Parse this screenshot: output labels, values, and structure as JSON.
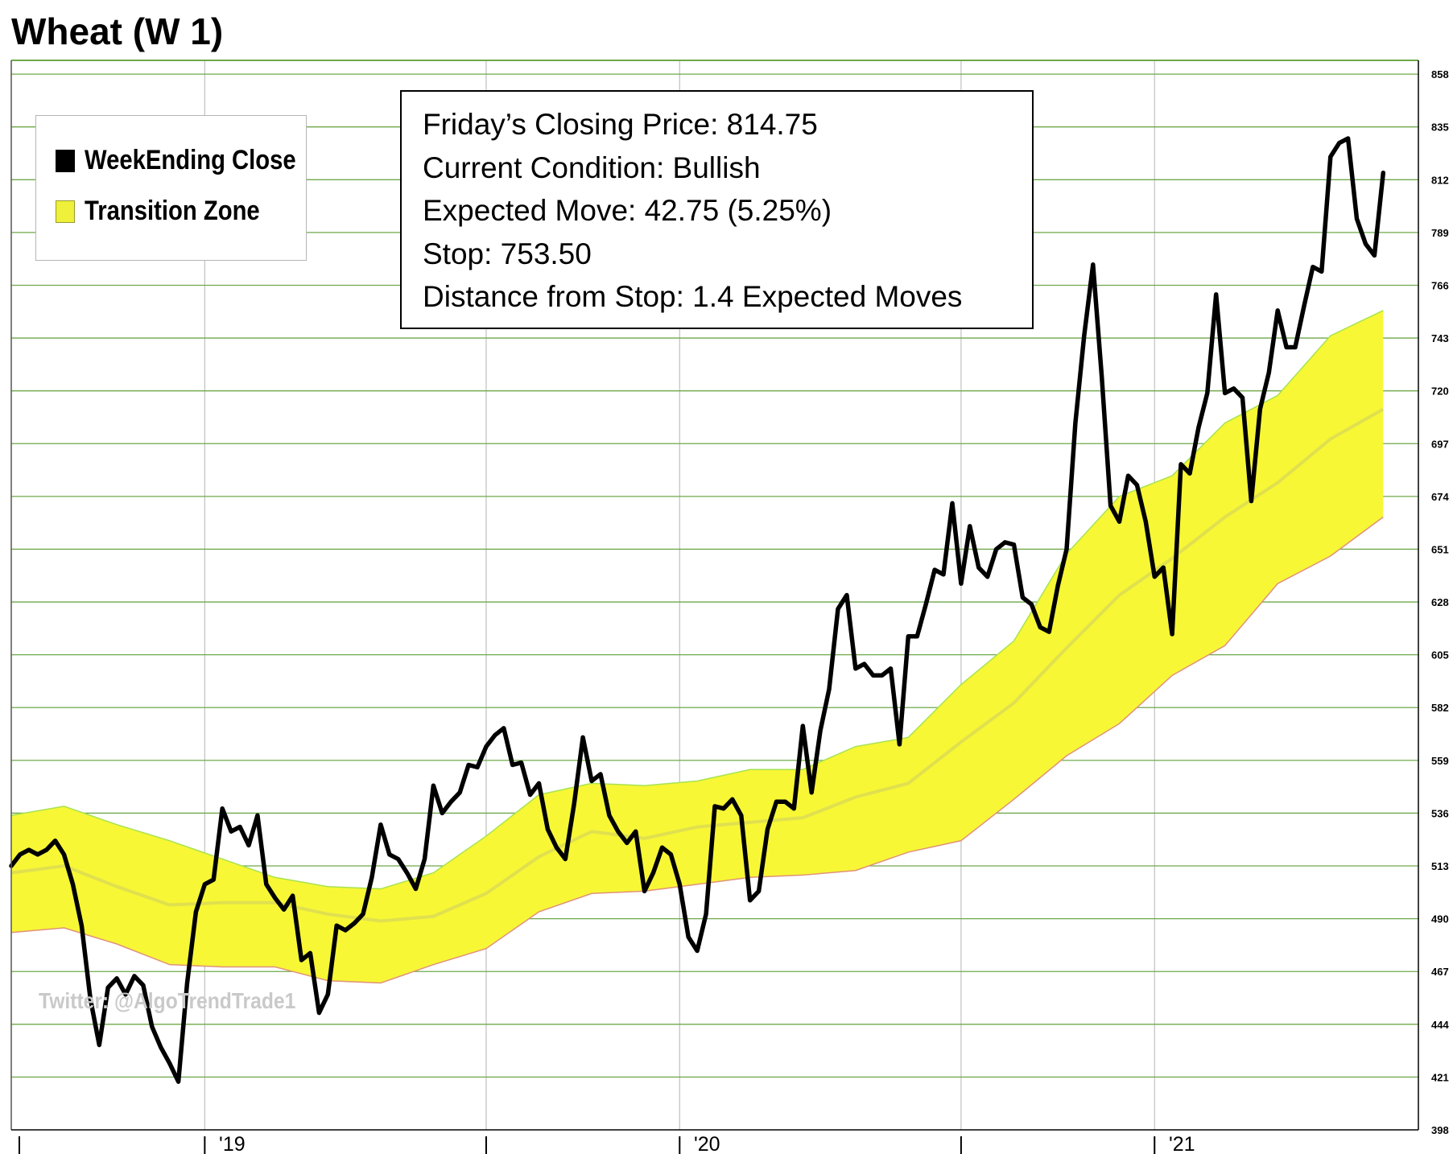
{
  "title": "Wheat (W 1)",
  "legend": {
    "items": [
      {
        "label": "WeekEnding Close",
        "color": "#000000"
      },
      {
        "label": "Transition Zone",
        "color": "#eef03a"
      }
    ]
  },
  "info_box": {
    "closing_price": "Friday’s Closing Price: 814.75",
    "condition": "Current Condition: Bullish",
    "expected_move": "Expected Move: 42.75 (5.25%)",
    "stop": "Stop: 753.50",
    "distance": "Distance from Stop: 1.4 Expected Moves"
  },
  "watermark": "Twitter: @AlgoTrendTrade1",
  "colors": {
    "price_line": "#000000",
    "zone_fill": "#f7f736",
    "zone_upper_edge": "#a8e24f",
    "zone_lower_edge": "#e0927a",
    "zone_mid": "#d6d65a",
    "grid": "#6fa84a",
    "vgrid": "#c0c0c0"
  },
  "chart_data": {
    "type": "line",
    "title": "Wheat (W 1)",
    "xlabel": "",
    "ylabel": "",
    "ylim": [
      398,
      864
    ],
    "y_ticks": [
      398,
      421,
      444,
      467,
      490,
      513,
      536,
      559,
      582,
      605,
      628,
      651,
      674,
      697,
      720,
      743,
      766,
      789,
      812,
      835,
      858
    ],
    "x_tick_labels": [
      "'19",
      "'20",
      "'21"
    ],
    "x_range_weeks": [
      0,
      160
    ],
    "grid": true,
    "legend_position": "top-left",
    "x_ticks": [
      {
        "label": "",
        "week": 0
      },
      {
        "label": "'19",
        "week": 22
      },
      {
        "label": "",
        "week": 54
      },
      {
        "label": "'20",
        "week": 76
      },
      {
        "label": "",
        "week": 108
      },
      {
        "label": "'21",
        "week": 130
      }
    ],
    "series": [
      {
        "name": "WeekEnding Close",
        "style": "line",
        "points": [
          [
            0,
            513
          ],
          [
            1,
            518
          ],
          [
            2,
            520
          ],
          [
            3,
            518
          ],
          [
            4,
            520
          ],
          [
            5,
            524
          ],
          [
            6,
            518
          ],
          [
            7,
            505
          ],
          [
            8,
            487
          ],
          [
            9,
            455
          ],
          [
            10,
            435
          ],
          [
            11,
            460
          ],
          [
            12,
            464
          ],
          [
            13,
            457
          ],
          [
            14,
            465
          ],
          [
            15,
            461
          ],
          [
            16,
            443
          ],
          [
            17,
            434
          ],
          [
            18,
            427
          ],
          [
            19,
            419
          ],
          [
            20,
            462
          ],
          [
            21,
            493
          ],
          [
            22,
            505
          ],
          [
            23,
            507
          ],
          [
            24,
            538
          ],
          [
            25,
            528
          ],
          [
            26,
            530
          ],
          [
            27,
            522
          ],
          [
            28,
            535
          ],
          [
            29,
            505
          ],
          [
            30,
            499
          ],
          [
            31,
            494
          ],
          [
            32,
            500
          ],
          [
            33,
            472
          ],
          [
            34,
            475
          ],
          [
            35,
            449
          ],
          [
            36,
            457
          ],
          [
            37,
            487
          ],
          [
            38,
            485
          ],
          [
            39,
            488
          ],
          [
            40,
            492
          ],
          [
            41,
            508
          ],
          [
            42,
            531
          ],
          [
            43,
            518
          ],
          [
            44,
            516
          ],
          [
            45,
            510
          ],
          [
            46,
            503
          ],
          [
            47,
            516
          ],
          [
            48,
            548
          ],
          [
            49,
            536
          ],
          [
            50,
            541
          ],
          [
            51,
            545
          ],
          [
            52,
            557
          ],
          [
            53,
            556
          ],
          [
            54,
            565
          ],
          [
            55,
            570
          ],
          [
            56,
            573
          ],
          [
            57,
            557
          ],
          [
            58,
            558
          ],
          [
            59,
            544
          ],
          [
            60,
            549
          ],
          [
            61,
            529
          ],
          [
            62,
            521
          ],
          [
            63,
            516
          ],
          [
            64,
            540
          ],
          [
            65,
            569
          ],
          [
            66,
            550
          ],
          [
            67,
            553
          ],
          [
            68,
            535
          ],
          [
            69,
            528
          ],
          [
            70,
            523
          ],
          [
            71,
            528
          ],
          [
            72,
            502
          ],
          [
            73,
            510
          ],
          [
            74,
            521
          ],
          [
            75,
            518
          ],
          [
            76,
            505
          ],
          [
            77,
            482
          ],
          [
            78,
            476
          ],
          [
            79,
            492
          ],
          [
            80,
            539
          ],
          [
            81,
            538
          ],
          [
            82,
            542
          ],
          [
            83,
            535
          ],
          [
            84,
            498
          ],
          [
            85,
            502
          ],
          [
            86,
            529
          ],
          [
            87,
            541
          ],
          [
            88,
            541
          ],
          [
            89,
            538
          ],
          [
            90,
            574
          ],
          [
            91,
            545
          ],
          [
            92,
            572
          ],
          [
            93,
            590
          ],
          [
            94,
            625
          ],
          [
            95,
            631
          ],
          [
            96,
            599
          ],
          [
            97,
            601
          ],
          [
            98,
            596
          ],
          [
            99,
            596
          ],
          [
            100,
            599
          ],
          [
            101,
            566
          ],
          [
            102,
            613
          ],
          [
            103,
            613
          ],
          [
            104,
            627
          ],
          [
            105,
            642
          ],
          [
            106,
            640
          ],
          [
            107,
            671
          ],
          [
            108,
            636
          ],
          [
            109,
            661
          ],
          [
            110,
            643
          ],
          [
            111,
            639
          ],
          [
            112,
            651
          ],
          [
            113,
            654
          ],
          [
            114,
            653
          ],
          [
            115,
            630
          ],
          [
            116,
            627
          ],
          [
            117,
            617
          ],
          [
            118,
            615
          ],
          [
            119,
            635
          ],
          [
            120,
            651
          ],
          [
            121,
            706
          ],
          [
            122,
            744
          ],
          [
            123,
            775
          ],
          [
            124,
            726
          ],
          [
            125,
            670
          ],
          [
            126,
            663
          ],
          [
            127,
            683
          ],
          [
            128,
            679
          ],
          [
            129,
            663
          ],
          [
            130,
            639
          ],
          [
            131,
            643
          ],
          [
            132,
            614
          ],
          [
            133,
            688
          ],
          [
            134,
            684
          ],
          [
            135,
            704
          ],
          [
            136,
            719
          ],
          [
            137,
            762
          ],
          [
            138,
            719
          ],
          [
            139,
            721
          ],
          [
            140,
            717
          ],
          [
            141,
            672
          ],
          [
            142,
            712
          ],
          [
            143,
            728
          ],
          [
            144,
            755
          ],
          [
            145,
            739
          ],
          [
            146,
            739
          ],
          [
            147,
            757
          ],
          [
            148,
            774
          ],
          [
            149,
            772
          ],
          [
            150,
            822
          ],
          [
            151,
            828
          ],
          [
            152,
            830
          ],
          [
            153,
            795
          ],
          [
            154,
            784
          ],
          [
            155,
            779
          ],
          [
            156,
            815
          ]
        ]
      },
      {
        "name": "Transition Zone",
        "style": "band",
        "weeks": [
          0,
          6,
          12,
          18,
          24,
          30,
          36,
          42,
          48,
          54,
          60,
          66,
          72,
          78,
          84,
          90,
          96,
          102,
          108,
          114,
          120,
          126,
          132,
          138,
          144,
          150,
          156
        ],
        "upper": [
          535,
          539,
          531,
          524,
          516,
          508,
          504,
          503,
          510,
          526,
          544,
          549,
          548,
          550,
          555,
          555,
          565,
          569,
          592,
          611,
          649,
          674,
          683,
          706,
          718,
          744,
          755
        ],
        "middle": [
          510,
          513,
          504,
          496,
          497,
          497,
          492,
          489,
          491,
          501,
          517,
          528,
          525,
          530,
          532,
          534,
          543,
          549,
          567,
          584,
          608,
          631,
          647,
          665,
          680,
          699,
          712
        ],
        "lower": [
          484,
          486,
          479,
          470,
          469,
          469,
          463,
          462,
          470,
          477,
          493,
          501,
          502,
          505,
          508,
          509,
          511,
          519,
          524,
          542,
          561,
          575,
          596,
          609,
          636,
          648,
          665
        ]
      }
    ]
  }
}
